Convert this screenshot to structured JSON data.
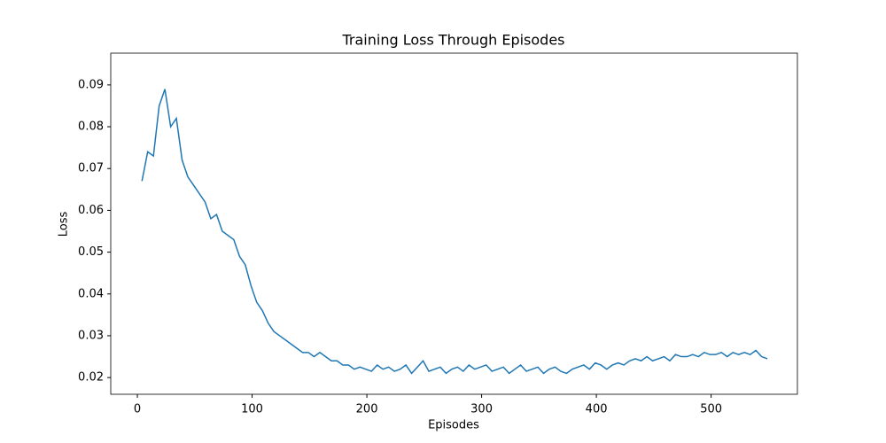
{
  "chart_data": {
    "type": "line",
    "title": "Training Loss Through Episodes",
    "x_label": "Episodes",
    "y_label": "Loss",
    "x": [
      4,
      9,
      14,
      19,
      24,
      29,
      34,
      39,
      44,
      49,
      54,
      59,
      64,
      69,
      74,
      79,
      84,
      89,
      94,
      99,
      104,
      109,
      114,
      119,
      124,
      129,
      134,
      139,
      144,
      149,
      154,
      159,
      164,
      169,
      174,
      179,
      184,
      189,
      194,
      199,
      204,
      209,
      214,
      219,
      224,
      229,
      234,
      239,
      244,
      249,
      254,
      259,
      264,
      269,
      274,
      279,
      284,
      289,
      294,
      299,
      304,
      309,
      314,
      319,
      324,
      329,
      334,
      339,
      344,
      349,
      354,
      359,
      364,
      369,
      374,
      379,
      384,
      389,
      394,
      399,
      404,
      409,
      414,
      419,
      424,
      429,
      434,
      439,
      444,
      449,
      454,
      459,
      464,
      469,
      474,
      479,
      484,
      489,
      494,
      499,
      504,
      509,
      514,
      519,
      524,
      529,
      534,
      539,
      544,
      549
    ],
    "series": [
      {
        "name": "Loss",
        "color": "#1f77b4",
        "values": [
          0.067,
          0.074,
          0.073,
          0.085,
          0.089,
          0.08,
          0.082,
          0.072,
          0.068,
          0.066,
          0.064,
          0.062,
          0.058,
          0.059,
          0.055,
          0.054,
          0.053,
          0.049,
          0.047,
          0.042,
          0.038,
          0.036,
          0.033,
          0.031,
          0.03,
          0.029,
          0.028,
          0.027,
          0.026,
          0.026,
          0.025,
          0.026,
          0.025,
          0.024,
          0.024,
          0.023,
          0.023,
          0.022,
          0.0225,
          0.022,
          0.0215,
          0.023,
          0.022,
          0.0225,
          0.0215,
          0.022,
          0.023,
          0.021,
          0.0225,
          0.024,
          0.0215,
          0.022,
          0.0225,
          0.021,
          0.022,
          0.0225,
          0.0215,
          0.023,
          0.022,
          0.0225,
          0.023,
          0.0215,
          0.022,
          0.0225,
          0.021,
          0.022,
          0.023,
          0.0215,
          0.022,
          0.0225,
          0.021,
          0.022,
          0.0225,
          0.0215,
          0.021,
          0.022,
          0.0225,
          0.023,
          0.022,
          0.0235,
          0.023,
          0.022,
          0.023,
          0.0235,
          0.023,
          0.024,
          0.0245,
          0.024,
          0.025,
          0.024,
          0.0245,
          0.025,
          0.024,
          0.0255,
          0.025,
          0.025,
          0.0255,
          0.025,
          0.026,
          0.0255,
          0.0255,
          0.026,
          0.025,
          0.026,
          0.0255,
          0.026,
          0.0255,
          0.0265,
          0.025,
          0.0245
        ]
      }
    ],
    "xlim": [
      -23.2,
      575.2
    ],
    "xticks": [
      0,
      100,
      200,
      300,
      400,
      500
    ],
    "ylim": [
      0.016,
      0.0976
    ],
    "yticks": [
      0.02,
      0.03,
      0.04,
      0.05,
      0.06,
      0.07,
      0.08,
      0.09
    ]
  }
}
